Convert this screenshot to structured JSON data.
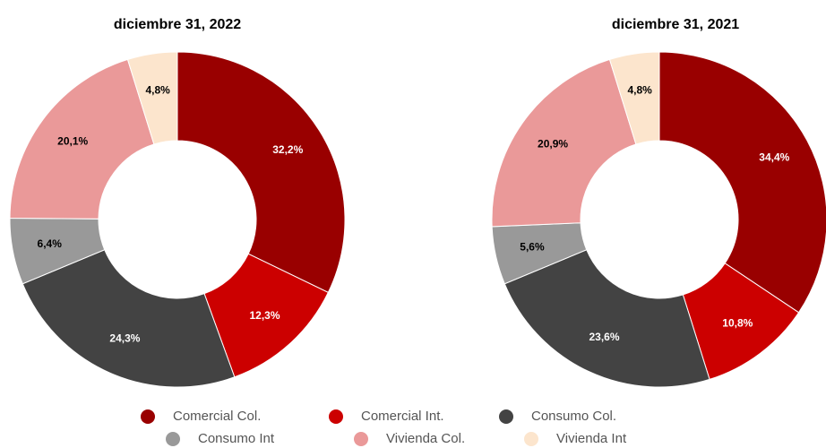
{
  "chart_data": [
    {
      "type": "donut",
      "title": "diciembre 31, 2022",
      "values": [
        32.2,
        12.3,
        24.3,
        6.4,
        20.1,
        4.8
      ],
      "value_labels": [
        "32,2%",
        "12,3%",
        "24,3%",
        "6,4%",
        "20,1%",
        "4,8%"
      ]
    },
    {
      "type": "donut",
      "title": "diciembre 31, 2021",
      "values": [
        34.4,
        10.8,
        23.6,
        5.6,
        20.9,
        4.8
      ],
      "value_labels": [
        "34,4%",
        "10,8%",
        "23,6%",
        "5,6%",
        "20,9%",
        "4,8%"
      ]
    }
  ],
  "legend": {
    "categories": [
      "Comercial Col.",
      "Comercial Int.",
      "Consumo Col.",
      "Consumo Int",
      "Vivienda Col.",
      "Vivienda Int"
    ],
    "colors": [
      "#990000",
      "#cc0000",
      "#434343",
      "#999999",
      "#ea9999",
      "#fce5cd"
    ]
  }
}
